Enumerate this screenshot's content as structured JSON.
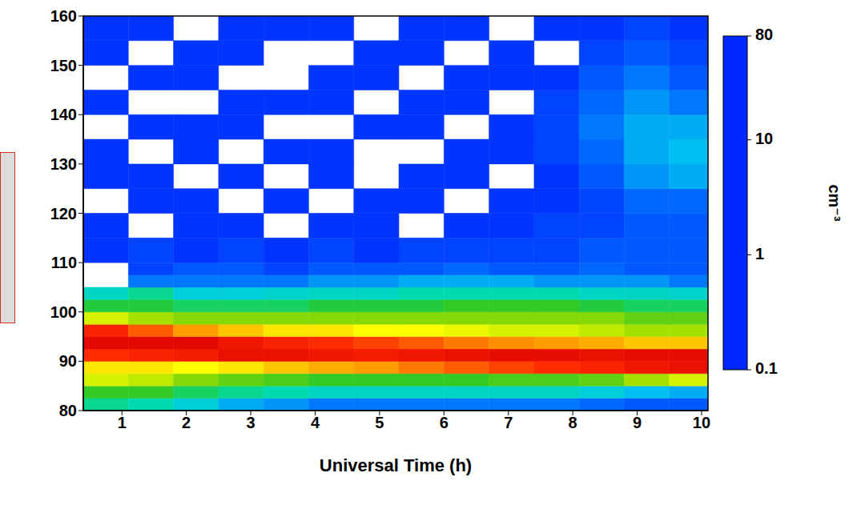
{
  "chart_data": {
    "type": "heatmap",
    "x_label": "Universal Time (h)",
    "xlim": [
      0.4,
      10.1
    ],
    "xticks": [
      1,
      2,
      3,
      4,
      5,
      6,
      7,
      8,
      9,
      10
    ],
    "ylim": [
      80,
      160
    ],
    "yticks": [
      80,
      90,
      100,
      110,
      120,
      130,
      140,
      150,
      160
    ],
    "x_bins": [
      0.4,
      1.1,
      1.8,
      2.5,
      3.2,
      3.9,
      4.6,
      5.3,
      6.0,
      6.7,
      7.4,
      8.1,
      8.8,
      9.5,
      10.1
    ],
    "y_bins": [
      80,
      82.5,
      85,
      87.5,
      90,
      92.5,
      95,
      97.5,
      100,
      102.5,
      105,
      107.5,
      110,
      115,
      120,
      125,
      130,
      135,
      140,
      145,
      150,
      155,
      160
    ],
    "cells": [
      [
        1.5,
        1.2,
        0.8,
        0.5,
        0.4,
        0.3,
        0.3,
        0.3,
        0.3,
        0.3,
        0.3,
        0.25,
        0.2,
        0.2
      ],
      [
        3,
        3,
        2,
        1.5,
        1.2,
        1,
        1,
        1,
        1,
        1,
        1,
        0.8,
        0.6,
        0.5
      ],
      [
        8,
        7,
        5,
        4,
        3.5,
        3,
        3,
        3,
        3,
        3.5,
        3.5,
        4,
        6,
        8
      ],
      [
        12,
        12,
        10,
        12,
        15,
        18,
        20,
        25,
        30,
        35,
        40,
        45,
        55,
        60
      ],
      [
        40,
        45,
        50,
        60,
        60,
        55,
        50,
        55,
        60,
        65,
        65,
        60,
        65,
        65
      ],
      [
        70,
        70,
        70,
        55,
        45,
        40,
        35,
        30,
        25,
        22,
        20,
        18,
        15,
        15
      ],
      [
        45,
        30,
        20,
        15,
        12,
        12,
        10,
        10,
        9,
        8,
        8,
        7,
        6,
        6
      ],
      [
        8,
        6,
        5,
        5,
        5,
        5,
        5,
        5,
        5,
        5,
        5,
        5,
        4,
        4
      ],
      [
        2.5,
        2.5,
        2,
        2,
        2,
        2.5,
        2.5,
        2.5,
        3,
        3,
        3,
        2.5,
        2,
        2
      ],
      [
        1,
        1.5,
        0.8,
        0.8,
        0.9,
        1,
        1,
        1.2,
        1.2,
        1.2,
        1.2,
        1,
        1,
        0.9
      ],
      [
        null,
        0.3,
        0.3,
        0.3,
        0.3,
        0.4,
        0.4,
        0.5,
        0.5,
        0.5,
        0.4,
        0.4,
        0.4,
        0.3
      ],
      [
        null,
        0.15,
        0.2,
        0.2,
        0.15,
        0.2,
        0.2,
        0.2,
        0.25,
        0.2,
        0.2,
        0.25,
        0.2,
        0.2
      ],
      [
        0.12,
        0.15,
        0.12,
        0.15,
        0.12,
        0.15,
        0.12,
        0.15,
        0.15,
        0.15,
        0.15,
        0.2,
        0.2,
        0.2
      ],
      [
        0.12,
        null,
        0.12,
        0.12,
        null,
        0.12,
        0.12,
        null,
        0.12,
        0.12,
        0.15,
        0.15,
        0.2,
        0.2
      ],
      [
        null,
        0.12,
        0.12,
        null,
        0.12,
        null,
        0.12,
        0.12,
        null,
        0.12,
        0.12,
        0.15,
        0.25,
        0.25
      ],
      [
        0.12,
        0.12,
        null,
        0.12,
        null,
        0.12,
        null,
        0.12,
        0.12,
        null,
        0.12,
        0.2,
        0.4,
        0.5
      ],
      [
        0.12,
        null,
        0.12,
        null,
        0.12,
        0.12,
        null,
        null,
        0.12,
        0.12,
        0.15,
        0.25,
        0.5,
        0.6
      ],
      [
        null,
        0.12,
        0.12,
        0.12,
        null,
        null,
        0.12,
        0.12,
        null,
        0.12,
        0.15,
        0.3,
        0.5,
        0.5
      ],
      [
        0.12,
        null,
        null,
        0.12,
        0.12,
        0.12,
        null,
        0.12,
        0.12,
        null,
        0.15,
        0.25,
        0.4,
        0.3
      ],
      [
        null,
        0.12,
        0.12,
        null,
        null,
        0.12,
        0.12,
        null,
        0.12,
        0.12,
        0.12,
        0.2,
        0.3,
        0.2
      ],
      [
        0.12,
        null,
        0.12,
        0.12,
        null,
        null,
        0.12,
        0.12,
        null,
        0.12,
        null,
        0.15,
        0.2,
        0.15
      ],
      [
        0.12,
        0.12,
        null,
        0.12,
        0.12,
        0.12,
        null,
        0.12,
        0.12,
        null,
        0.12,
        0.12,
        0.15,
        0.12
      ]
    ],
    "colorbar": {
      "label": "cm⁻³",
      "range": [
        0.1,
        80
      ],
      "ticks": [
        0.1,
        1,
        10,
        80
      ],
      "log": true
    }
  }
}
